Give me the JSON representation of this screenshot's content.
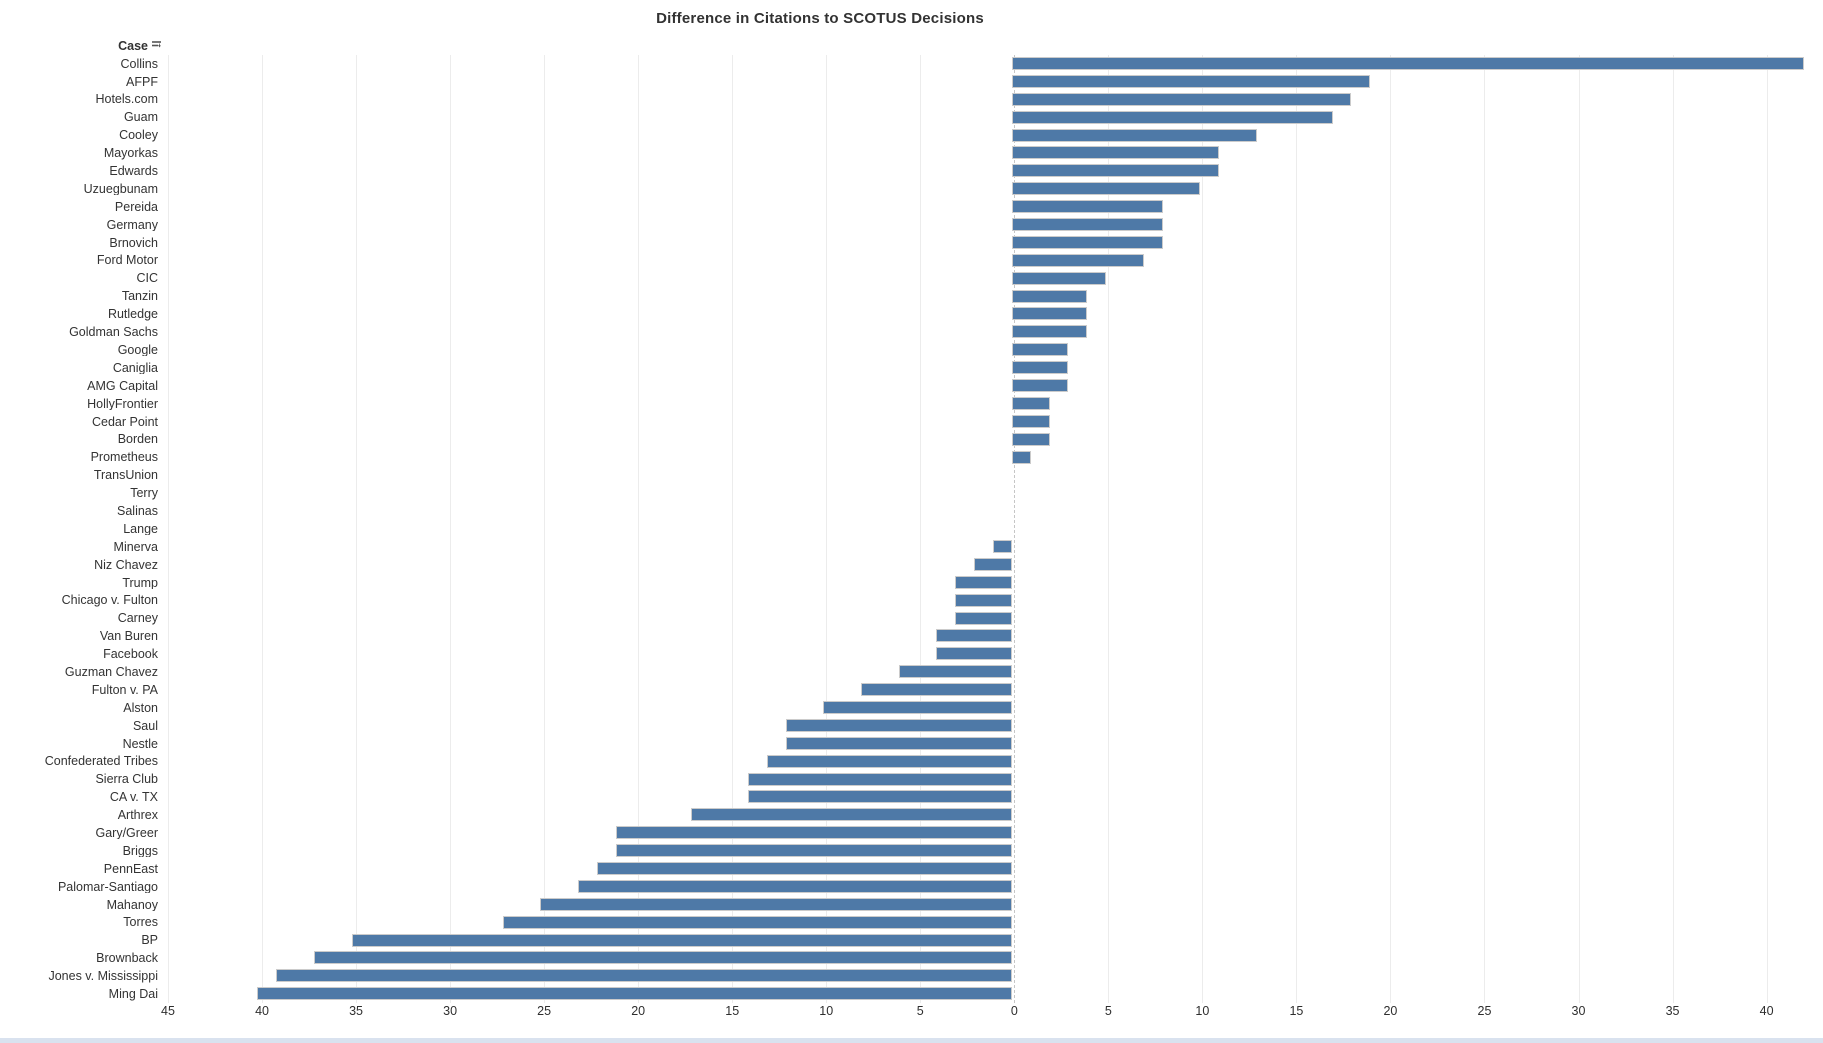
{
  "title": "Difference in Citations to SCOTUS Decisions",
  "column_header": {
    "label": "Case",
    "sort_icon": "sort-descending-icon"
  },
  "axis": {
    "tick_labels": [
      "45",
      "40",
      "35",
      "30",
      "25",
      "20",
      "15",
      "10",
      "5",
      "0",
      "5",
      "10",
      "15",
      "20",
      "25",
      "30",
      "35",
      "40"
    ],
    "tick_values": [
      -45,
      -40,
      -35,
      -30,
      -25,
      -20,
      -15,
      -10,
      -5,
      0,
      5,
      10,
      15,
      20,
      25,
      30,
      35,
      40
    ]
  },
  "colors": {
    "bar": "#4e79a7",
    "bar_border": "#cbcbcb",
    "gridline": "#ececec",
    "zero_line": "#c6c6c6",
    "text": "#333333",
    "bottom_strip": "#d9e2ef"
  },
  "chart_data": {
    "type": "bar",
    "orientation": "horizontal_diverging",
    "title": "Difference in Citations to SCOTUS Decisions",
    "xlabel": "",
    "ylabel": "Case",
    "xlim": [
      -45,
      43
    ],
    "tick_interval": 5,
    "tick_labels_absolute": true,
    "grid": true,
    "legend": false,
    "categories": [
      "Collins",
      "AFPF",
      "Hotels.com",
      "Guam",
      "Cooley",
      "Mayorkas",
      "Edwards",
      "Uzuegbunam",
      "Pereida",
      "Germany",
      "Brnovich",
      "Ford Motor",
      "CIC",
      "Tanzin",
      "Rutledge",
      "Goldman Sachs",
      "Google",
      "Caniglia",
      "AMG Capital",
      "HollyFrontier",
      "Cedar Point",
      "Borden",
      "Prometheus",
      "TransUnion",
      "Terry",
      "Salinas",
      "Lange",
      "Minerva",
      "Niz Chavez",
      "Trump",
      "Chicago v. Fulton",
      "Carney",
      "Van Buren",
      "Facebook",
      "Guzman Chavez",
      "Fulton v. PA",
      "Alston",
      "Saul",
      "Nestle",
      "Confederated Tribes",
      "Sierra Club",
      "CA v. TX",
      "Arthrex",
      "Gary/Greer",
      "Briggs",
      "PennEast",
      "Palomar-Santiago",
      "Mahanoy",
      "Torres",
      "BP",
      "Brownback",
      "Jones v. Mississippi",
      "Ming Dai"
    ],
    "values": [
      42,
      19,
      18,
      17,
      13,
      11,
      11,
      10,
      8,
      8,
      8,
      7,
      5,
      4,
      4,
      4,
      3,
      3,
      3,
      2,
      2,
      2,
      1,
      0,
      0,
      0,
      0,
      -1,
      -2,
      -3,
      -3,
      -3,
      -4,
      -4,
      -6,
      -8,
      -10,
      -12,
      -12,
      -13,
      -14,
      -14,
      -17,
      -21,
      -21,
      -22,
      -23,
      -25,
      -27,
      -35,
      -37,
      -39,
      -40
    ]
  }
}
